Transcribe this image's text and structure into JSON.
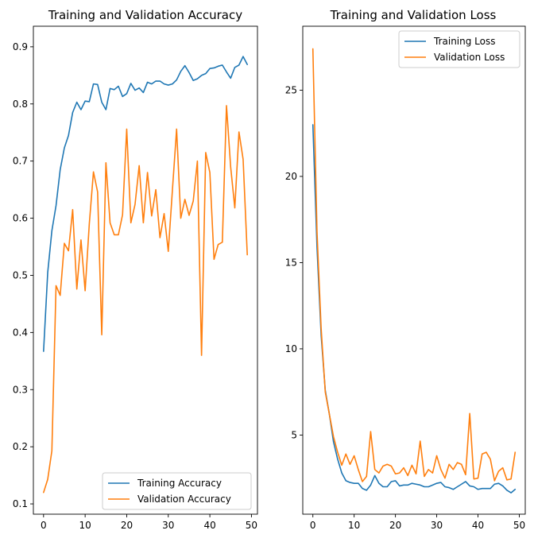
{
  "chart_data": [
    {
      "type": "line",
      "title": "Training and Validation Accuracy",
      "xlabel": "",
      "ylabel": "",
      "xlim": [
        -2.45,
        51.45
      ],
      "ylim": [
        0.082,
        0.936
      ],
      "xticks": [
        0,
        10,
        20,
        30,
        40,
        50
      ],
      "yticks": [
        0.1,
        0.2,
        0.3,
        0.4,
        0.5,
        0.6,
        0.7,
        0.8,
        0.9
      ],
      "grid": false,
      "legend_position": "lower-right",
      "series": [
        {
          "name": "Training Accuracy",
          "color": "#1f77b4",
          "x": [
            0,
            1,
            2,
            3,
            4,
            5,
            6,
            7,
            8,
            9,
            10,
            11,
            12,
            13,
            14,
            15,
            16,
            17,
            18,
            19,
            20,
            21,
            22,
            23,
            24,
            25,
            26,
            27,
            28,
            29,
            30,
            31,
            32,
            33,
            34,
            35,
            36,
            37,
            38,
            39,
            40,
            41,
            42,
            43,
            44,
            45,
            46,
            47,
            48,
            49
          ],
          "values": [
            0.367,
            0.505,
            0.578,
            0.622,
            0.685,
            0.723,
            0.745,
            0.785,
            0.803,
            0.79,
            0.805,
            0.804,
            0.835,
            0.834,
            0.803,
            0.79,
            0.827,
            0.825,
            0.831,
            0.813,
            0.818,
            0.836,
            0.824,
            0.828,
            0.82,
            0.838,
            0.835,
            0.84,
            0.84,
            0.835,
            0.833,
            0.835,
            0.842,
            0.857,
            0.867,
            0.855,
            0.841,
            0.844,
            0.85,
            0.853,
            0.862,
            0.863,
            0.866,
            0.868,
            0.856,
            0.845,
            0.864,
            0.868,
            0.883,
            0.869
          ]
        },
        {
          "name": "Validation Accuracy",
          "color": "#ff7f0e",
          "x": [
            0,
            1,
            2,
            3,
            4,
            5,
            6,
            7,
            8,
            9,
            10,
            11,
            12,
            13,
            14,
            15,
            16,
            17,
            18,
            19,
            20,
            21,
            22,
            23,
            24,
            25,
            26,
            27,
            28,
            29,
            30,
            31,
            32,
            33,
            34,
            35,
            36,
            37,
            38,
            39,
            40,
            41,
            42,
            43,
            44,
            45,
            46,
            47,
            48,
            49
          ],
          "values": [
            0.12,
            0.143,
            0.193,
            0.482,
            0.465,
            0.556,
            0.543,
            0.615,
            0.476,
            0.562,
            0.473,
            0.59,
            0.681,
            0.646,
            0.396,
            0.697,
            0.592,
            0.571,
            0.571,
            0.606,
            0.756,
            0.592,
            0.624,
            0.692,
            0.592,
            0.68,
            0.604,
            0.65,
            0.566,
            0.608,
            0.542,
            0.65,
            0.756,
            0.6,
            0.633,
            0.605,
            0.63,
            0.7,
            0.36,
            0.715,
            0.68,
            0.528,
            0.554,
            0.558,
            0.797,
            0.69,
            0.618,
            0.751,
            0.703,
            0.536
          ]
        }
      ]
    },
    {
      "type": "line",
      "title": "Training and Validation Loss",
      "xlabel": "",
      "ylabel": "",
      "xlim": [
        -2.45,
        51.45
      ],
      "ylim": [
        0.41,
        28.71
      ],
      "xticks": [
        0,
        10,
        20,
        30,
        40,
        50
      ],
      "yticks": [
        5,
        10,
        15,
        20,
        25
      ],
      "grid": false,
      "legend_position": "upper-right",
      "series": [
        {
          "name": "Training Loss",
          "color": "#1f77b4",
          "x": [
            0,
            1,
            2,
            3,
            4,
            5,
            6,
            7,
            8,
            9,
            10,
            11,
            12,
            13,
            14,
            15,
            16,
            17,
            18,
            19,
            20,
            21,
            22,
            23,
            24,
            25,
            26,
            27,
            28,
            29,
            30,
            31,
            32,
            33,
            34,
            35,
            36,
            37,
            38,
            39,
            40,
            41,
            42,
            43,
            44,
            45,
            46,
            47,
            48,
            49
          ],
          "values": [
            23.0,
            15.9,
            10.8,
            7.6,
            6.2,
            4.6,
            3.6,
            2.8,
            2.35,
            2.25,
            2.2,
            2.2,
            1.9,
            1.8,
            2.1,
            2.65,
            2.2,
            2.0,
            2.0,
            2.3,
            2.35,
            2.05,
            2.1,
            2.1,
            2.2,
            2.15,
            2.1,
            2.0,
            2.0,
            2.1,
            2.2,
            2.25,
            2.0,
            1.95,
            1.85,
            2.0,
            2.15,
            2.3,
            2.05,
            2.0,
            1.85,
            1.9,
            1.9,
            1.9,
            2.15,
            2.2,
            2.05,
            1.8,
            1.65,
            1.85
          ]
        },
        {
          "name": "Validation Loss",
          "color": "#ff7f0e",
          "x": [
            0,
            1,
            2,
            3,
            4,
            5,
            6,
            7,
            8,
            9,
            10,
            11,
            12,
            13,
            14,
            15,
            16,
            17,
            18,
            19,
            20,
            21,
            22,
            23,
            24,
            25,
            26,
            27,
            28,
            29,
            30,
            31,
            32,
            33,
            34,
            35,
            36,
            37,
            38,
            39,
            40,
            41,
            42,
            43,
            44,
            45,
            46,
            47,
            48,
            49
          ],
          "values": [
            27.4,
            16.8,
            11.2,
            7.5,
            6.2,
            4.9,
            4.0,
            3.25,
            3.9,
            3.3,
            3.8,
            3.0,
            2.3,
            2.6,
            5.2,
            3.0,
            2.8,
            3.2,
            3.3,
            3.2,
            2.75,
            2.8,
            3.1,
            2.65,
            3.25,
            2.75,
            4.65,
            2.6,
            3.0,
            2.8,
            3.8,
            3.0,
            2.5,
            3.3,
            3.0,
            3.4,
            3.3,
            2.7,
            6.25,
            2.45,
            2.5,
            3.9,
            4.0,
            3.6,
            2.35,
            2.9,
            3.1,
            2.4,
            2.45,
            4.0
          ]
        }
      ]
    }
  ]
}
